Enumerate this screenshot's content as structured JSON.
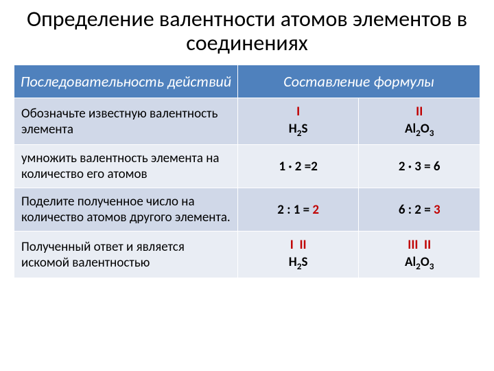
{
  "title_fontsize": 32,
  "header_fontsize": 22,
  "cell_fontsize": 19,
  "colors": {
    "header_bg": "#4f81bd",
    "band_light": "#d0d8e8",
    "band_dark": "#e9edf4",
    "border": "#ffffff",
    "accent_red": "#c00000",
    "text": "#000000"
  },
  "title": "Определение валентности атомов элементов в соединениях",
  "headers": {
    "action": "Последовательность действий",
    "formula": "Составление формулы"
  },
  "rows": [
    {
      "action": "Обозначьте известную валентность элемента",
      "f1_roman": "I",
      "f1_compound": "H₂S",
      "f2_roman": "II",
      "f2_compound": "Al₂O₃"
    },
    {
      "action": "умножить валентность элемента на количество его атомов",
      "f1_plain": "1 · 2 =2",
      "f2_plain": "2 · 3 = 6"
    },
    {
      "action": "Поделите полученное число на количество атомов другого элемента.",
      "f1_pre": "2 : 1 = ",
      "f1_red": "2",
      "f2_pre": "6 : 2 = ",
      "f2_red": "3"
    },
    {
      "action": "Полученный ответ и является искомой валентностью",
      "f1_roman_a": "I",
      "f1_roman_b": "II",
      "f1_compound": "H₂S",
      "f2_roman_a": "III",
      "f2_roman_b": "II",
      "f2_compound": "Al₂O₃"
    }
  ]
}
